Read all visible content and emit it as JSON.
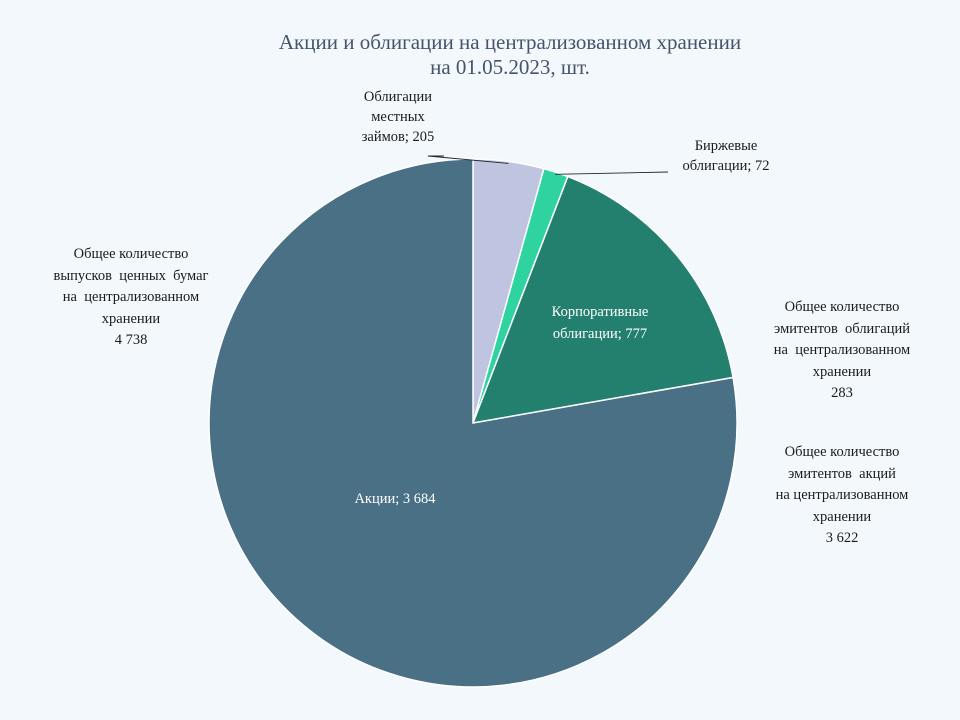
{
  "chart_data": {
    "type": "pie",
    "title": [
      "Акции и облигации на централизованном хранении",
      "на 01.05.2023, шт."
    ],
    "slices": [
      {
        "label": [
          "Облигации",
          "местных",
          "займов;"
        ],
        "value": 205,
        "value_text": "205",
        "color": "#bfc5e0"
      },
      {
        "label": [
          "Биржевые",
          "облигации;"
        ],
        "value": 72,
        "value_text": "72",
        "color": "#2ed3a0"
      },
      {
        "label": [
          "Корпоративные",
          "облигации;"
        ],
        "value": 777,
        "value_text": "777",
        "color": "#237f6e"
      },
      {
        "label": [
          "Акции;"
        ],
        "value": 3684,
        "value_text": "3 684",
        "color": "#4a7086"
      }
    ]
  },
  "notes": {
    "total_securities": [
      "Общее количество",
      "выпусков  ценных  бумаг",
      "на  централизованном",
      "хранении",
      "4 738"
    ],
    "bond_issuers": [
      "Общее количество",
      "эмитентов  облигаций",
      "на  централизованном",
      "хранении",
      "283"
    ],
    "share_issuers": [
      "Общее количество",
      "эмитентов  акций",
      "на централизованном",
      "хранении",
      "3 622"
    ]
  }
}
